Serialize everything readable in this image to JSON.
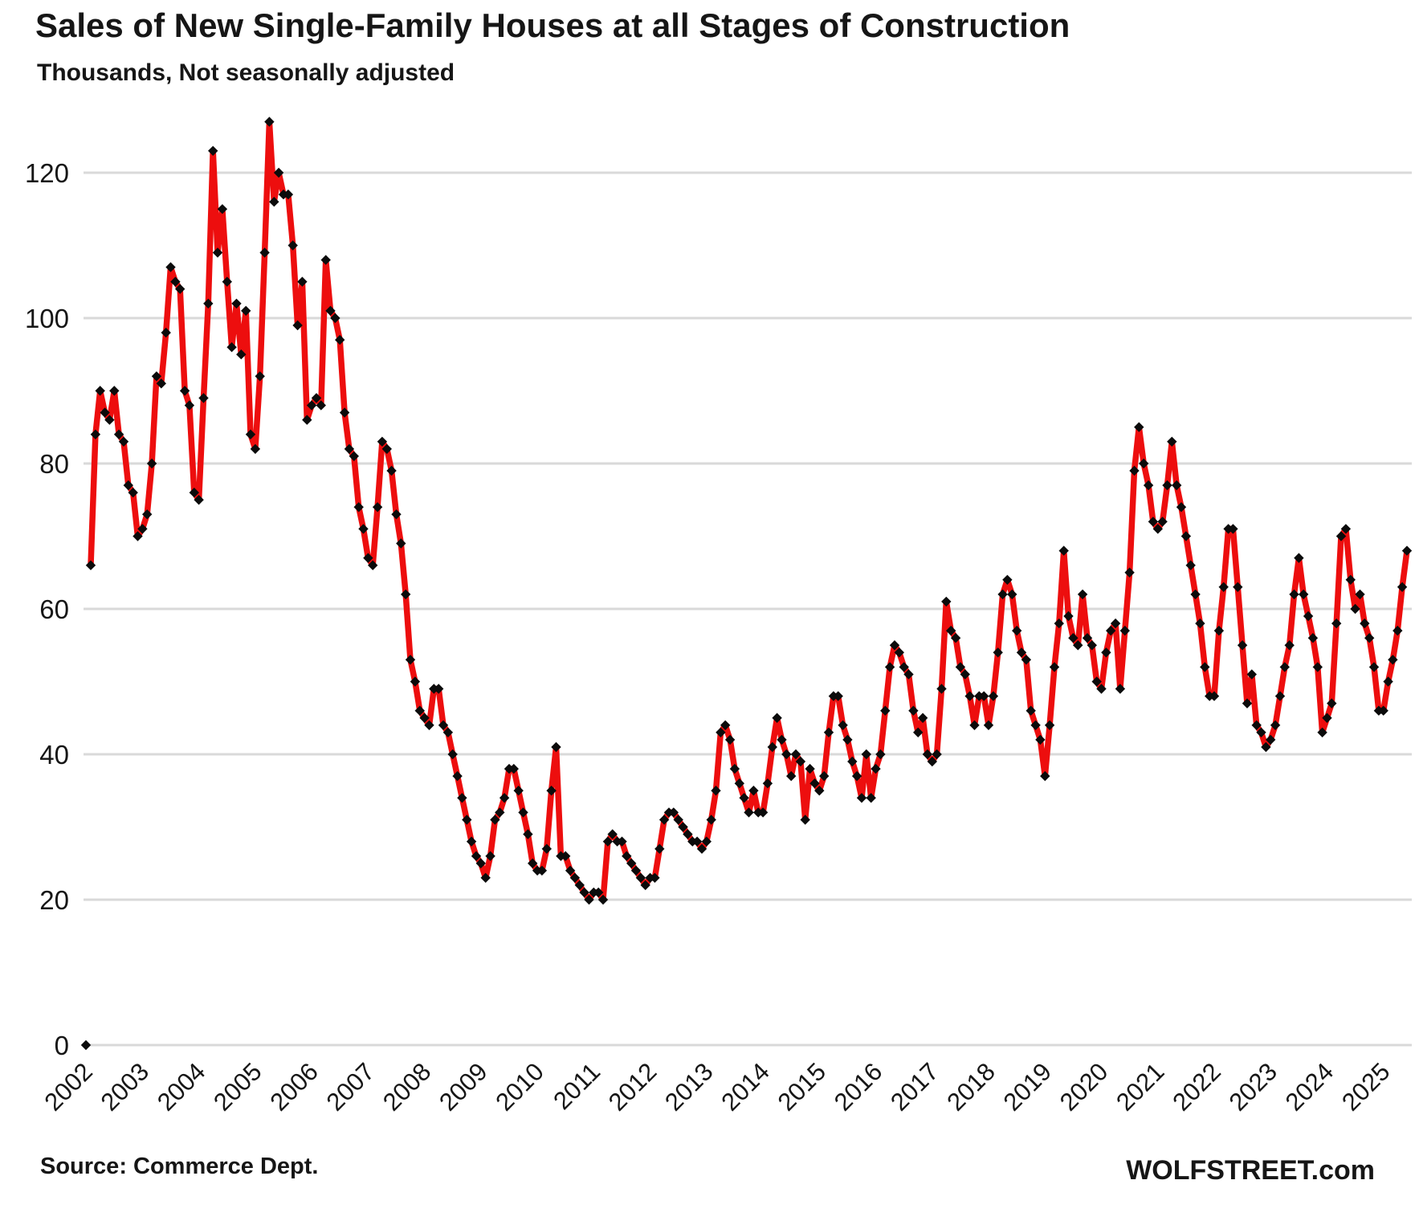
{
  "header": {
    "title": "Sales of New Single-Family Houses at all Stages of Construction",
    "subtitle": "Thousands, Not seasonally adjusted"
  },
  "footer": {
    "source_label": "Source: Commerce Dept.",
    "brand_label": "WOLFSTREET.com"
  },
  "colors": {
    "line": "#ED0E0E",
    "marker": "#0b0b0b",
    "gridline": "#D9D9D9",
    "text": "#161616"
  },
  "chart_data": {
    "type": "line",
    "title": "Sales of New Single-Family Houses at all Stages of Construction",
    "subtitle": "Thousands, Not seasonally adjusted",
    "xlabel": "",
    "ylabel": "Thousands",
    "frequency": "monthly",
    "x_start": "2002-01",
    "x_end": "2025-05",
    "ylim": [
      0,
      130
    ],
    "yticks": [
      0,
      20,
      40,
      60,
      80,
      100,
      120
    ],
    "grid": "horizontal",
    "legend_position": "none",
    "marker_shape": "diamond",
    "stray_zero_point": {
      "value": 0,
      "note": "lone black diamond at 0 at far left of axis"
    },
    "year_labels": [
      2002,
      2003,
      2004,
      2005,
      2006,
      2007,
      2008,
      2009,
      2010,
      2011,
      2012,
      2013,
      2014,
      2015,
      2016,
      2017,
      2018,
      2019,
      2020,
      2021,
      2022,
      2023,
      2024,
      2025
    ],
    "series": [
      {
        "name": "New single-family houses sold (all stages of construction)",
        "values_by_year": {
          "2002": [
            66,
            84,
            90,
            87,
            86,
            90,
            84,
            83,
            77,
            76,
            70,
            71
          ],
          "2003": [
            73,
            80,
            92,
            91,
            98,
            107,
            105,
            104,
            90,
            88,
            76,
            75
          ],
          "2004": [
            89,
            102,
            123,
            109,
            115,
            105,
            96,
            102,
            95,
            101,
            84,
            82
          ],
          "2005": [
            92,
            109,
            127,
            116,
            120,
            117,
            117,
            110,
            99,
            105,
            86,
            88
          ],
          "2006": [
            89,
            88,
            108,
            101,
            100,
            97,
            87,
            82,
            81,
            74,
            71,
            67
          ],
          "2007": [
            66,
            74,
            83,
            82,
            79,
            73,
            69,
            62,
            53,
            50,
            46,
            45
          ],
          "2008": [
            44,
            49,
            49,
            44,
            43,
            40,
            37,
            34,
            31,
            28,
            26,
            25
          ],
          "2009": [
            23,
            26,
            31,
            32,
            34,
            38,
            38,
            35,
            32,
            29,
            25,
            24
          ],
          "2010": [
            24,
            27,
            35,
            41,
            26,
            26,
            24,
            23,
            22,
            21,
            20,
            21
          ],
          "2011": [
            21,
            20,
            28,
            29,
            28,
            28,
            26,
            25,
            24,
            23,
            22,
            23
          ],
          "2012": [
            23,
            27,
            31,
            32,
            32,
            31,
            30,
            29,
            28,
            28,
            27,
            28
          ],
          "2013": [
            31,
            35,
            43,
            44,
            42,
            38,
            36,
            34,
            32,
            35,
            32,
            32
          ],
          "2014": [
            36,
            41,
            45,
            42,
            40,
            37,
            40,
            39,
            31,
            38,
            36,
            35
          ],
          "2015": [
            37,
            43,
            48,
            48,
            44,
            42,
            39,
            37,
            34,
            40,
            34,
            38
          ],
          "2016": [
            40,
            46,
            52,
            55,
            54,
            52,
            51,
            46,
            43,
            45,
            40,
            39
          ],
          "2017": [
            40,
            49,
            61,
            57,
            56,
            52,
            51,
            48,
            44,
            48,
            48,
            44
          ],
          "2018": [
            48,
            54,
            62,
            64,
            62,
            57,
            54,
            53,
            46,
            44,
            42,
            37
          ],
          "2019": [
            44,
            52,
            58,
            68,
            59,
            56,
            55,
            62,
            56,
            55,
            50,
            49
          ],
          "2020": [
            54,
            57,
            58,
            49,
            57,
            65,
            79,
            85,
            80,
            77,
            72,
            71
          ],
          "2021": [
            72,
            77,
            83,
            77,
            74,
            70,
            66,
            62,
            58,
            52,
            48,
            48
          ],
          "2022": [
            57,
            63,
            71,
            71,
            63,
            55,
            47,
            51,
            44,
            43,
            41,
            42
          ],
          "2023": [
            44,
            48,
            52,
            55,
            62,
            67,
            62,
            59,
            56,
            52,
            43,
            45
          ],
          "2024": [
            47,
            58,
            70,
            71,
            64,
            60,
            62,
            58,
            56,
            52,
            46,
            46
          ],
          "2025": [
            50,
            53,
            57,
            63,
            68
          ]
        }
      }
    ]
  }
}
